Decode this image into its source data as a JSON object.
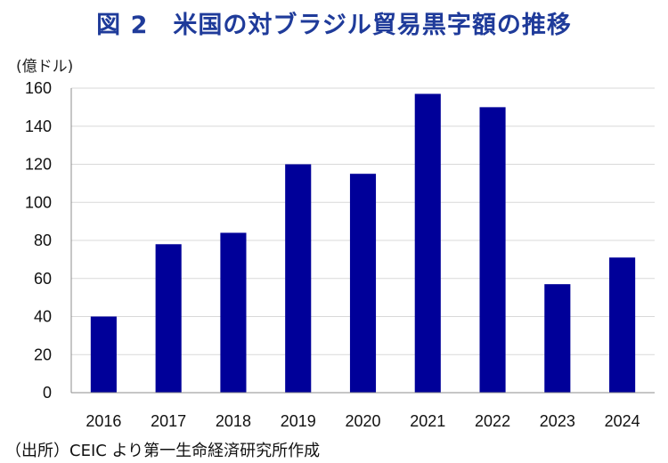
{
  "title": "図 2　米国の対ブラジル貿易黒字額の推移",
  "source": "（出所）CEIC より第一生命経済研究所作成",
  "colors": {
    "bar": "#000099",
    "title": "#1f3b9a",
    "grid": "#d9d9d9"
  },
  "chart_data": {
    "type": "bar",
    "title": "図 2　米国の対ブラジル貿易黒字額の推移",
    "ylabel": "(億ドル)",
    "xlabel": "",
    "categories": [
      "2016",
      "2017",
      "2018",
      "2019",
      "2020",
      "2021",
      "2022",
      "2023",
      "2024"
    ],
    "values": [
      40,
      78,
      84,
      120,
      115,
      157,
      150,
      57,
      71
    ],
    "ylim": [
      0,
      160
    ],
    "yticks": [
      0,
      20,
      40,
      60,
      80,
      100,
      120,
      140,
      160
    ],
    "grid": true,
    "legend": "none"
  }
}
